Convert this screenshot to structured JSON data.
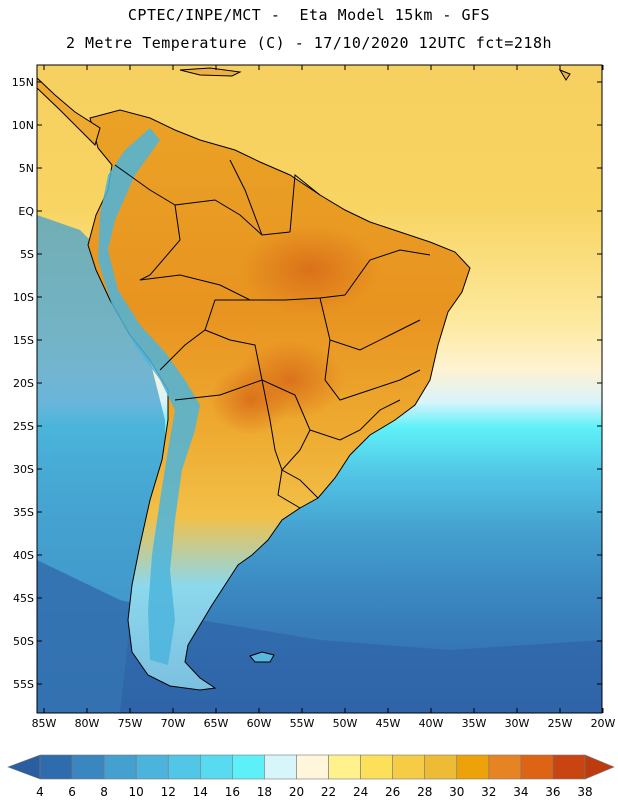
{
  "title": {
    "line1": "CPTEC/INPE/MCT -  Eta Model 15km - GFS",
    "line2": "2 Metre Temperature (C) - 17/10/2020 12UTC fct=218h"
  },
  "map": {
    "region": "South America",
    "lat_ticks": [
      "15N",
      "10N",
      "5N",
      "EQ",
      "5S",
      "10S",
      "15S",
      "20S",
      "25S",
      "30S",
      "35S",
      "40S",
      "45S",
      "50S",
      "55S"
    ],
    "lat_values": [
      15,
      10,
      5,
      0,
      -5,
      -10,
      -15,
      -20,
      -25,
      -30,
      -35,
      -40,
      -45,
      -50,
      -55
    ],
    "lon_ticks": [
      "85W",
      "80W",
      "75W",
      "70W",
      "65W",
      "60W",
      "55W",
      "50W",
      "45W",
      "40W",
      "35W",
      "30W",
      "25W",
      "20W"
    ],
    "lon_values": [
      -85,
      -80,
      -75,
      -70,
      -65,
      -60,
      -55,
      -50,
      -45,
      -40,
      -35,
      -30,
      -25,
      -20
    ]
  },
  "colorbar": {
    "labels": [
      "4",
      "6",
      "8",
      "10",
      "12",
      "14",
      "16",
      "18",
      "20",
      "22",
      "24",
      "26",
      "28",
      "30",
      "32",
      "34",
      "36",
      "38"
    ],
    "colors": [
      "#2f6cad",
      "#3a86c0",
      "#44a0cf",
      "#4cb4dc",
      "#52c6e6",
      "#58daf0",
      "#5ef0f8",
      "#d6f6fc",
      "#fff6dc",
      "#fff28c",
      "#fce05a",
      "#f6cc46",
      "#eebc34",
      "#eea20a",
      "#e68424",
      "#dc6414",
      "#c84410"
    ],
    "low_arrow_color": "#2a5ea0",
    "high_arrow_color": "#bc3c10"
  }
}
